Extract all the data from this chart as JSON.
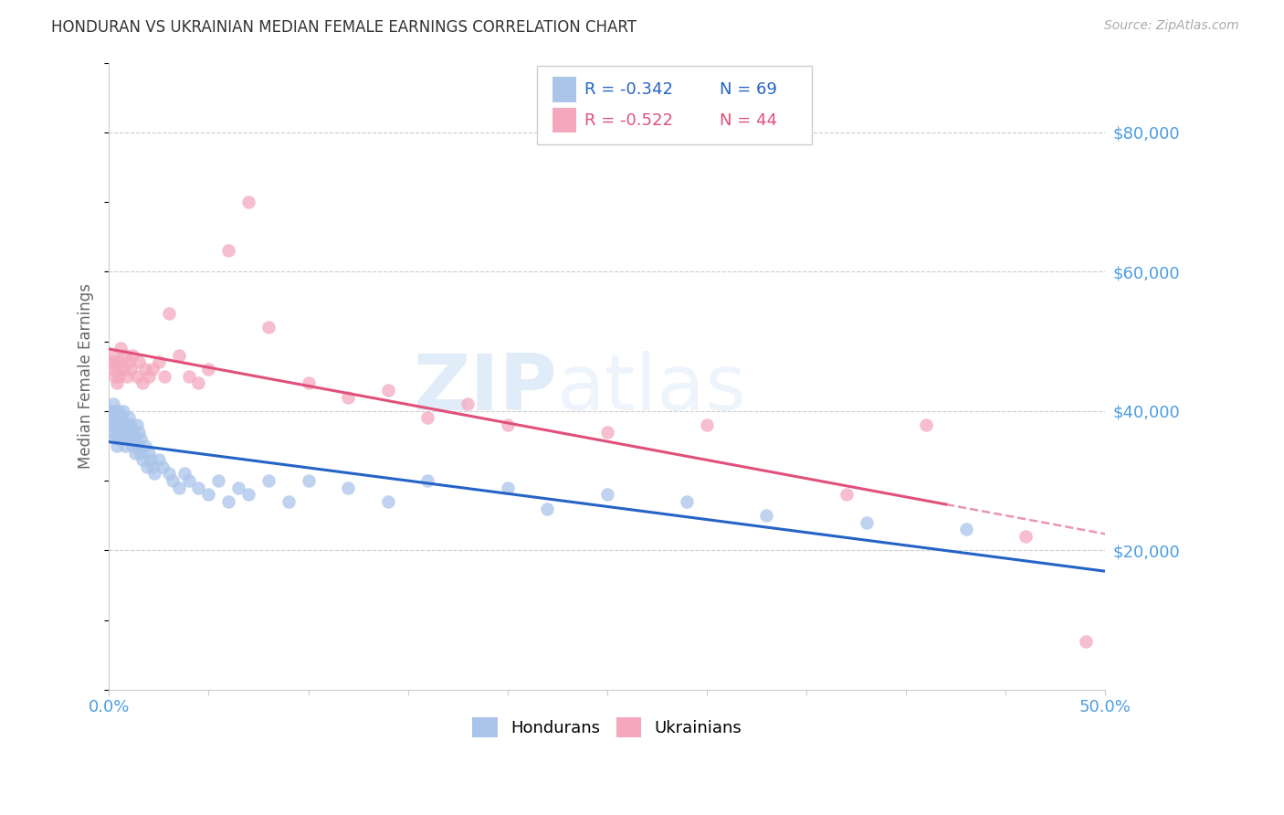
{
  "title": "HONDURAN VS UKRAINIAN MEDIAN FEMALE EARNINGS CORRELATION CHART",
  "source": "Source: ZipAtlas.com",
  "ylabel": "Median Female Earnings",
  "xlim": [
    0.0,
    0.5
  ],
  "ylim": [
    0,
    90000
  ],
  "yticks": [
    0,
    20000,
    40000,
    60000,
    80000
  ],
  "ytick_labels": [
    "",
    "$20,000",
    "$40,000",
    "$60,000",
    "$80,000"
  ],
  "xtick_labels_show": [
    "0.0%",
    "50.0%"
  ],
  "xticks_show": [
    0.0,
    0.5
  ],
  "xticks_minor": [
    0.05,
    0.1,
    0.15,
    0.2,
    0.25,
    0.3,
    0.35,
    0.4,
    0.45
  ],
  "honduran_color": "#aac4ea",
  "ukrainian_color": "#f4a8be",
  "honduran_line_color": "#2563c7",
  "ukrainian_line_color": "#e0507a",
  "legend_r_honduran": "R = -0.342",
  "legend_n_honduran": "N = 69",
  "legend_r_ukrainian": "R = -0.522",
  "legend_n_ukrainian": "N = 44",
  "watermark_zip": "ZIP",
  "watermark_atlas": "atlas",
  "background_color": "#ffffff",
  "grid_color": "#cccccc",
  "title_color": "#333333",
  "axis_label_color": "#4d9de0",
  "honduran_x": [
    0.001,
    0.001,
    0.002,
    0.002,
    0.002,
    0.003,
    0.003,
    0.003,
    0.004,
    0.004,
    0.004,
    0.005,
    0.005,
    0.005,
    0.006,
    0.006,
    0.007,
    0.007,
    0.007,
    0.008,
    0.008,
    0.009,
    0.009,
    0.01,
    0.01,
    0.011,
    0.011,
    0.012,
    0.012,
    0.013,
    0.013,
    0.014,
    0.015,
    0.015,
    0.016,
    0.016,
    0.017,
    0.018,
    0.019,
    0.02,
    0.021,
    0.022,
    0.023,
    0.025,
    0.027,
    0.03,
    0.032,
    0.035,
    0.038,
    0.04,
    0.045,
    0.05,
    0.055,
    0.06,
    0.065,
    0.07,
    0.08,
    0.09,
    0.1,
    0.12,
    0.14,
    0.16,
    0.2,
    0.22,
    0.25,
    0.29,
    0.33,
    0.38,
    0.43
  ],
  "honduran_y": [
    38000,
    40000,
    37000,
    39000,
    41000,
    36000,
    38000,
    40000,
    35000,
    37000,
    39000,
    36000,
    38000,
    40000,
    37000,
    39000,
    36000,
    38000,
    40000,
    35000,
    37000,
    36000,
    38000,
    37000,
    39000,
    36000,
    38000,
    35000,
    37000,
    34000,
    36000,
    38000,
    35000,
    37000,
    34000,
    36000,
    33000,
    35000,
    32000,
    34000,
    33000,
    32000,
    31000,
    33000,
    32000,
    31000,
    30000,
    29000,
    31000,
    30000,
    29000,
    28000,
    30000,
    27000,
    29000,
    28000,
    30000,
    27000,
    30000,
    29000,
    27000,
    30000,
    29000,
    26000,
    28000,
    27000,
    25000,
    24000,
    23000
  ],
  "ukrainian_x": [
    0.001,
    0.002,
    0.002,
    0.003,
    0.003,
    0.004,
    0.004,
    0.005,
    0.006,
    0.006,
    0.007,
    0.008,
    0.009,
    0.01,
    0.011,
    0.012,
    0.014,
    0.015,
    0.017,
    0.018,
    0.02,
    0.022,
    0.025,
    0.028,
    0.03,
    0.035,
    0.04,
    0.045,
    0.05,
    0.06,
    0.07,
    0.08,
    0.1,
    0.12,
    0.14,
    0.16,
    0.18,
    0.2,
    0.25,
    0.3,
    0.37,
    0.41,
    0.46,
    0.49
  ],
  "ukrainian_y": [
    47000,
    46000,
    48000,
    45000,
    47000,
    44000,
    46000,
    45000,
    47000,
    49000,
    46000,
    48000,
    45000,
    47000,
    46000,
    48000,
    45000,
    47000,
    44000,
    46000,
    45000,
    46000,
    47000,
    45000,
    54000,
    48000,
    45000,
    44000,
    46000,
    63000,
    70000,
    52000,
    44000,
    42000,
    43000,
    39000,
    41000,
    38000,
    37000,
    38000,
    28000,
    38000,
    22000,
    7000
  ]
}
